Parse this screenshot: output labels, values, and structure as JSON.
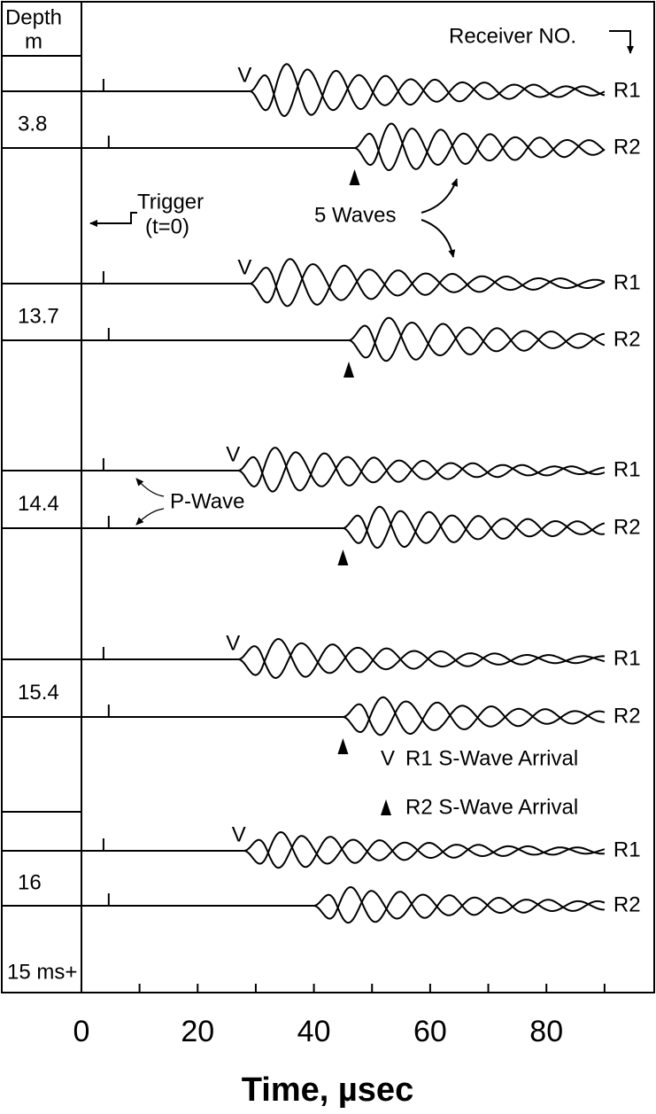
{
  "chart_data": {
    "type": "waveform",
    "x_label": "Time, µsec",
    "xlim": [
      -13.7,
      98.7
    ],
    "xticks": [
      0,
      20,
      40,
      60,
      80
    ],
    "minor_xticks": [
      10,
      30,
      50,
      70,
      90
    ],
    "depth_label": "Depth",
    "depth_unit": "m",
    "depths": [
      3.8,
      13.7,
      14.4,
      15.4,
      16
    ],
    "offset_label": "15 ms+",
    "receiver_label": "Receiver NO.",
    "receivers": [
      "R1",
      "R2"
    ],
    "r1_arrivals": [
      29,
      29,
      27,
      27,
      28
    ],
    "r2_arrivals": [
      47,
      46,
      45,
      45,
      null
    ],
    "p_wave_times": [
      3.8,
      4.7
    ],
    "v_symbol": "V",
    "legend_r1": "R1 S-Wave Arrival",
    "legend_r2": "R2 S-Wave Arrival",
    "trigger_label": "Trigger",
    "trigger_sub": "(t=0)",
    "waves_label": "5 Waves",
    "p_wave_label": "P-Wave"
  }
}
